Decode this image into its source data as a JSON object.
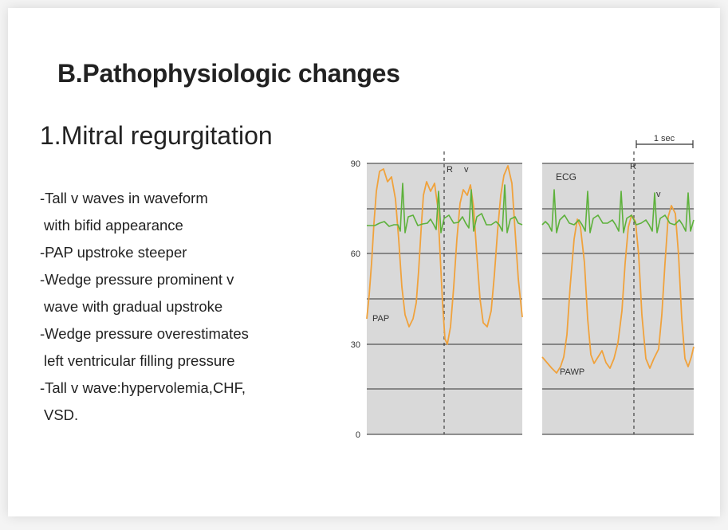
{
  "slide": {
    "title": "B.Pathophysiologic changes",
    "subtitle": "1.Mitral regurgitation",
    "bullets": [
      "-Tall v waves in waveform",
      " with bifid appearance",
      "-PAP upstroke steeper",
      "-Wedge pressure prominent v",
      " wave with gradual upstroke",
      "-Wedge pressure overestimates",
      "  left ventricular filling pressure",
      "-Tall v wave:hypervolemia,CHF,",
      " VSD."
    ]
  },
  "figure": {
    "y_ticks": [
      "90",
      "60",
      "30",
      "0"
    ],
    "time_scale_label": "1 sec",
    "left_panel": {
      "r_label": "R",
      "v_label": "v",
      "pap_label": "PAP"
    },
    "right_panel": {
      "ecg_label": "ECG",
      "r_label": "R",
      "v_label": "v",
      "pawp_label": "PAWP"
    },
    "colors": {
      "pressure_trace": "#f0a23c",
      "ecg_trace": "#5db13b",
      "panel_bg": "#d9d9d9",
      "gridline": "#555555"
    }
  }
}
